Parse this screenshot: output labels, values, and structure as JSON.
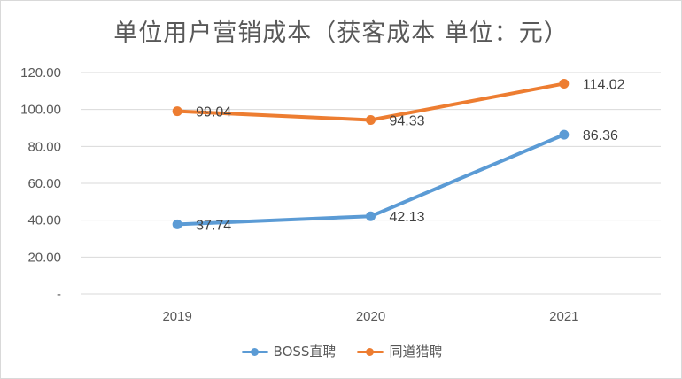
{
  "chart_data": {
    "type": "line",
    "title": "单位用户营销成本（获客成本 单位：元）",
    "categories": [
      "2019",
      "2020",
      "2021"
    ],
    "y_ticks": [
      "-",
      "20.00",
      "40.00",
      "60.00",
      "80.00",
      "100.00",
      "120.00"
    ],
    "ylim": [
      0,
      120
    ],
    "grid": true,
    "legend_position": "bottom",
    "series": [
      {
        "name": "BOSS直聘",
        "values": [
          37.74,
          42.13,
          86.36
        ],
        "labels": [
          "37.74",
          "42.13",
          "86.36"
        ],
        "color": "#5B9BD5"
      },
      {
        "name": "同道猎聘",
        "values": [
          99.04,
          94.33,
          114.02
        ],
        "labels": [
          "99.04",
          "94.33",
          "114.02"
        ],
        "color": "#ED7D31"
      }
    ]
  }
}
